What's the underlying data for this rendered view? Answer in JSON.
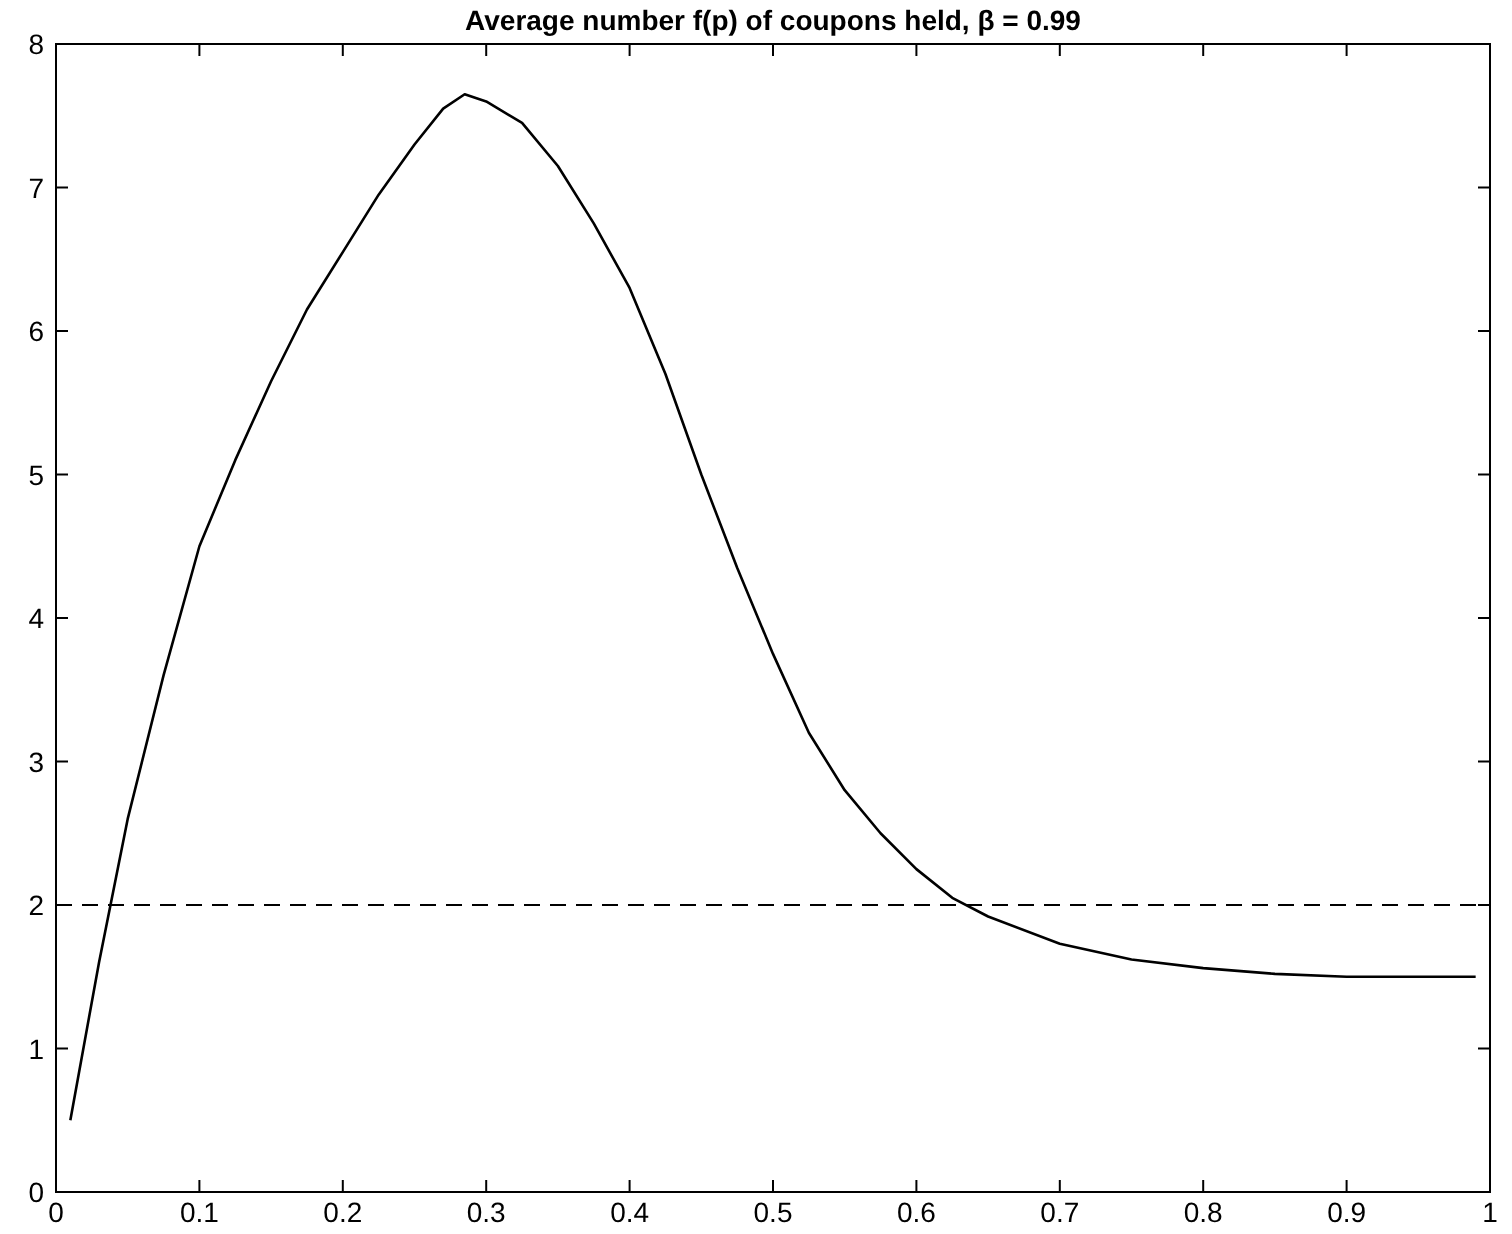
{
  "chart_data": {
    "type": "line",
    "title": "Average number f(p) of coupons held, β = 0.99",
    "x": [
      0.01,
      0.03,
      0.05,
      0.075,
      0.1,
      0.125,
      0.15,
      0.175,
      0.2,
      0.225,
      0.25,
      0.27,
      0.285,
      0.3,
      0.325,
      0.35,
      0.375,
      0.4,
      0.425,
      0.45,
      0.475,
      0.5,
      0.525,
      0.55,
      0.575,
      0.6,
      0.625,
      0.65,
      0.7,
      0.75,
      0.8,
      0.85,
      0.9,
      0.95,
      0.99
    ],
    "series": [
      {
        "color": "#000000",
        "values": [
          0.5,
          1.6,
          2.6,
          3.6,
          4.5,
          5.1,
          5.65,
          6.15,
          6.55,
          6.95,
          7.3,
          7.55,
          7.65,
          7.6,
          7.45,
          7.15,
          6.75,
          6.3,
          5.7,
          5.0,
          4.35,
          3.75,
          3.2,
          2.8,
          2.5,
          2.25,
          2.05,
          1.92,
          1.73,
          1.62,
          1.56,
          1.52,
          1.5,
          1.5,
          1.5
        ]
      }
    ],
    "xlim": [
      0,
      1
    ],
    "ylim": [
      0,
      8
    ],
    "xticks": [
      0,
      0.1,
      0.2,
      0.3,
      0.4,
      0.5,
      0.6,
      0.7,
      0.8,
      0.9,
      1
    ],
    "yticks": [
      0,
      1,
      2,
      3,
      4,
      5,
      6,
      7,
      8
    ],
    "marker": "none",
    "line_style": "solid",
    "ref_lines": [
      {
        "axis": "y",
        "value": 2,
        "color": "#000000",
        "line_style": "dashed"
      }
    ]
  }
}
